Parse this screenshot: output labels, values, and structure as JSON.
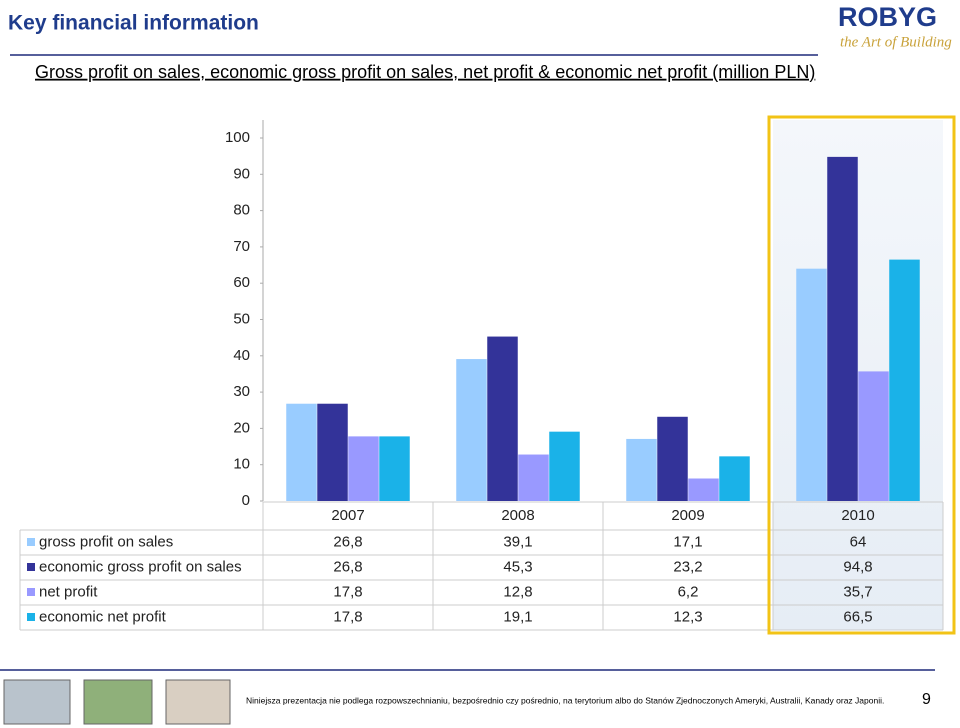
{
  "header": {
    "title": "Key financial information",
    "subtitle": "Gross profit on sales, economic gross profit on sales, net profit & economic net profit (million PLN)"
  },
  "logo": {
    "name": "ROBYG",
    "tagline": "the Art of Building"
  },
  "footer": {
    "note": "Niniejsza prezentacja nie podlega rozpowszechnianiu, bezpośrednio czy pośrednio, na terytorium albo do Stanów Zjednoczonych Ameryki, Australii, Kanady oraz Japonii.",
    "page": "9"
  },
  "chart_data": {
    "type": "bar",
    "categories": [
      "2007",
      "2008",
      "2009",
      "2010"
    ],
    "series": [
      {
        "name": "gross profit on sales",
        "color": "#99ccff",
        "values": [
          26.8,
          39.1,
          17.1,
          64
        ],
        "value_labels": [
          "26,8",
          "39,1",
          "17,1",
          "64"
        ]
      },
      {
        "name": "economic gross profit on sales",
        "color": "#333399",
        "values": [
          26.8,
          45.3,
          23.2,
          94.8
        ],
        "value_labels": [
          "26,8",
          "45,3",
          "23,2",
          "94,8"
        ]
      },
      {
        "name": "net profit",
        "color": "#9999ff",
        "values": [
          17.8,
          12.8,
          6.2,
          35.7
        ],
        "value_labels": [
          "17,8",
          "12,8",
          "6,2",
          "35,7"
        ]
      },
      {
        "name": "economic net profit",
        "color": "#1ab2e8",
        "values": [
          17.8,
          19.1,
          12.3,
          66.5
        ],
        "value_labels": [
          "17,8",
          "19,1",
          "12,3",
          "66,5"
        ]
      }
    ],
    "ylim": [
      0,
      100
    ],
    "yticks": [
      0,
      10,
      20,
      30,
      40,
      50,
      60,
      70,
      80,
      90,
      100
    ],
    "grid": false
  }
}
